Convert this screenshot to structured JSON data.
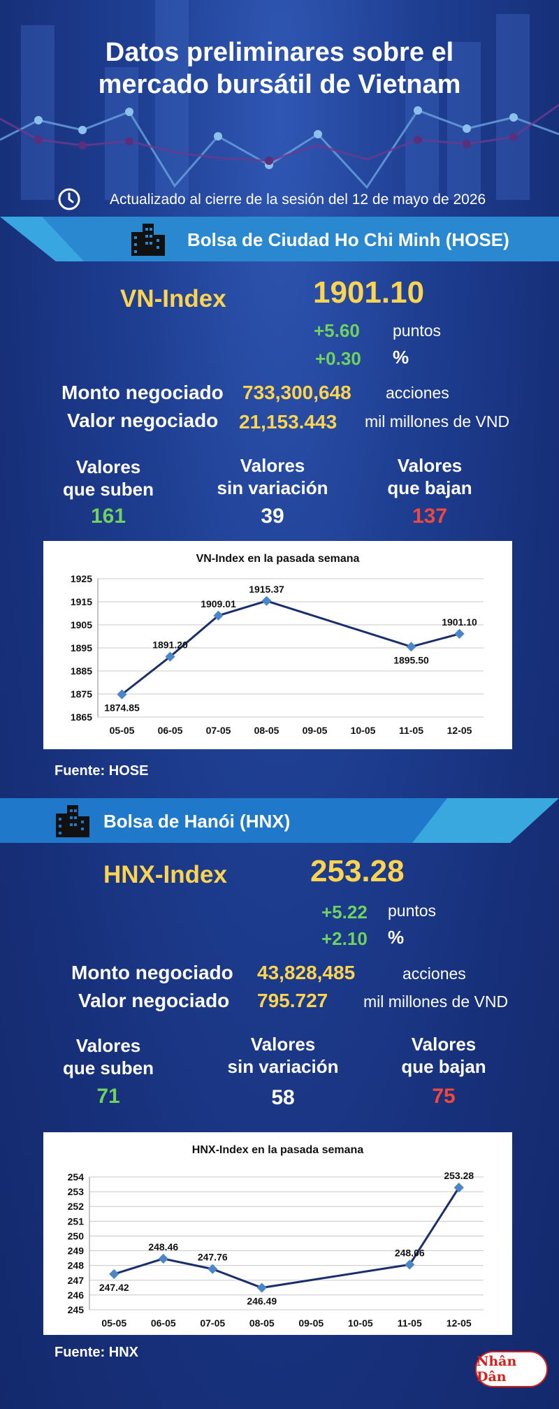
{
  "header": {
    "title": "Datos preliminares sobre el\nmercado bursátil de Vietnam",
    "updated": "Actualizado al cierre de la sesión del 12 de mayo de 2026"
  },
  "hose": {
    "section_title": "Bolsa de Ciudad Ho Chi Minh (HOSE)",
    "index_label": "VN-Index",
    "index_value": "1901.10",
    "change_points": "+5.60",
    "points_unit": "puntos",
    "change_pct": "+0.30",
    "pct_unit": "%",
    "volume_label": "Monto negociado",
    "volume_value": "733,300,648",
    "volume_unit": "acciones",
    "value_label": "Valor negociado",
    "value_value": "21,153.443",
    "value_unit": "mil millones de VND",
    "up_label": "Valores\nque suben",
    "up_value": "161",
    "flat_label": "Valores\nsin variación",
    "flat_value": "39",
    "down_label": "Valores\nque bajan",
    "down_value": "137",
    "source": "Fuente: HOSE"
  },
  "hnx": {
    "section_title": "Bolsa de Hanói (HNX)",
    "index_label": "HNX-Index",
    "index_value": "253.28",
    "change_points": "+5.22",
    "points_unit": "puntos",
    "change_pct": "+2.10",
    "pct_unit": "%",
    "volume_label": "Monto negociado",
    "volume_value": "43,828,485",
    "volume_unit": "acciones",
    "value_label": "Valor negociado",
    "value_value": "795.727",
    "value_unit": "mil millones de VND",
    "up_label": "Valores\nque suben",
    "up_value": "71",
    "flat_label": "Valores\nsin variación",
    "flat_value": "58",
    "down_label": "Valores\nque bajan",
    "down_value": "75",
    "source": "Fuente:  HNX"
  },
  "logo_text": "Nhân Dân",
  "colors": {
    "accent_yellow": "#fcd44f",
    "up_green": "#6fd15e",
    "down_red": "#f0473e",
    "line_navy": "#1a2e6b",
    "marker_blue": "#4a86c8"
  },
  "chart_data": [
    {
      "type": "line",
      "title": "VN-Index en la pasada semana",
      "categories": [
        "05-05",
        "06-05",
        "07-05",
        "08-05",
        "09-05",
        "10-05",
        "11-05",
        "12-05"
      ],
      "ylim": [
        1865,
        1925
      ],
      "yticks": [
        1865,
        1875,
        1885,
        1895,
        1905,
        1915,
        1925
      ],
      "grid": true,
      "series": [
        {
          "points": [
            {
              "x": "05-05",
              "y": 1874.85,
              "label": "1874.85"
            },
            {
              "x": "06-05",
              "y": 1891.2,
              "label": "1891.20"
            },
            {
              "x": "07-05",
              "y": 1909.01,
              "label": "1909.01"
            },
            {
              "x": "08-05",
              "y": 1915.37,
              "label": "1915.37"
            },
            {
              "x": "11-05",
              "y": 1895.5,
              "label": "1895.50"
            },
            {
              "x": "12-05",
              "y": 1901.1,
              "label": "1901.10"
            }
          ]
        }
      ]
    },
    {
      "type": "line",
      "title": "HNX-Index en la pasada semana",
      "categories": [
        "05-05",
        "06-05",
        "07-05",
        "08-05",
        "09-05",
        "10-05",
        "11-05",
        "12-05"
      ],
      "ylim": [
        245,
        254
      ],
      "yticks": [
        245,
        246,
        247,
        248,
        249,
        250,
        251,
        252,
        253,
        254
      ],
      "grid": true,
      "series": [
        {
          "points": [
            {
              "x": "05-05",
              "y": 247.42,
              "label": "247.42"
            },
            {
              "x": "06-05",
              "y": 248.46,
              "label": "248.46"
            },
            {
              "x": "07-05",
              "y": 247.76,
              "label": "247.76"
            },
            {
              "x": "08-05",
              "y": 246.49,
              "label": "246.49"
            },
            {
              "x": "11-05",
              "y": 248.06,
              "label": "248.06"
            },
            {
              "x": "12-05",
              "y": 253.28,
              "label": "253.28"
            }
          ]
        }
      ]
    }
  ]
}
